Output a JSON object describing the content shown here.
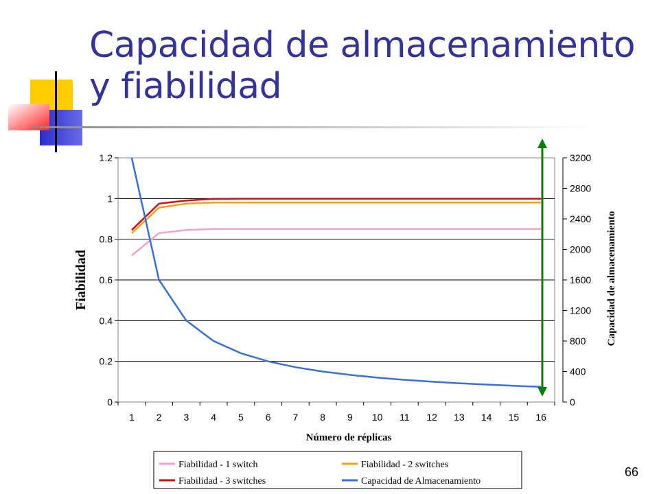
{
  "slide": {
    "title_line1": "Capacidad de almacenamiento",
    "title_line2": "y fiabilidad",
    "number": "66"
  },
  "colors": {
    "title": "#333399",
    "decor_yellow": "#ffcc00",
    "decor_blue": "#3333cc",
    "decor_red": "#ff3333",
    "arrow": "#008000"
  },
  "chart_data": {
    "type": "line",
    "xlabel": "Número de réplicas",
    "ylabel": "Fiabilidad",
    "y2label": "Capacidad de almacenamiento",
    "x": [
      1,
      2,
      3,
      4,
      5,
      6,
      7,
      8,
      9,
      10,
      11,
      12,
      13,
      14,
      15,
      16
    ],
    "ylim": [
      0,
      1.2
    ],
    "yticks": [
      "0",
      "0.2",
      "0.4",
      "0.6",
      "0.8",
      "1",
      "1.2"
    ],
    "y2lim": [
      0,
      3200
    ],
    "y2ticks": [
      "0",
      "400",
      "800",
      "1200",
      "1600",
      "2000",
      "2400",
      "2800",
      "3200"
    ],
    "grid": true,
    "legend_position": "bottom",
    "series": [
      {
        "name": "Fiabilidad - 1 switch",
        "axis": "left",
        "color": "#f4a0c8",
        "values": [
          0.72,
          0.83,
          0.845,
          0.85,
          0.85,
          0.85,
          0.85,
          0.85,
          0.85,
          0.85,
          0.85,
          0.85,
          0.85,
          0.85,
          0.85,
          0.85
        ]
      },
      {
        "name": "Fiabilidad - 2 switches",
        "axis": "left",
        "color": "#f0a020",
        "values": [
          0.83,
          0.955,
          0.975,
          0.98,
          0.98,
          0.98,
          0.98,
          0.98,
          0.98,
          0.98,
          0.98,
          0.98,
          0.98,
          0.98,
          0.98,
          0.98
        ]
      },
      {
        "name": "Fiabilidad - 3 switches",
        "axis": "left",
        "color": "#cc1111",
        "values": [
          0.845,
          0.975,
          0.99,
          0.998,
          0.999,
          0.999,
          0.999,
          0.999,
          0.999,
          0.999,
          0.999,
          0.999,
          0.999,
          0.999,
          0.999,
          0.999
        ]
      },
      {
        "name": "Capacidad de Almacenamiento",
        "axis": "right",
        "color": "#3a6fd8",
        "values": [
          3200,
          1600,
          1067,
          800,
          640,
          533,
          457,
          400,
          356,
          320,
          291,
          267,
          246,
          229,
          213,
          200
        ]
      }
    ]
  }
}
